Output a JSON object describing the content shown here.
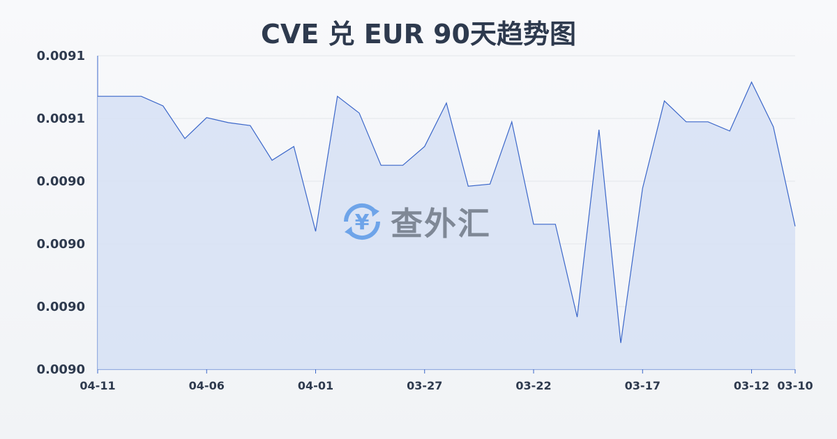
{
  "title": "CVE 兑 EUR 90天趋势图",
  "watermark": {
    "text": "查外汇",
    "icon": "yen-exchange-icon",
    "icon_color": "#4a90e2"
  },
  "chart_data": {
    "type": "area",
    "title": "CVE 兑 EUR 90天趋势图",
    "xlabel": "",
    "ylabel": "",
    "ylim": [
      0.009,
      0.009075
    ],
    "yticks": [
      0.009075,
      0.00906,
      0.009045,
      0.00903,
      0.009015,
      0.009
    ],
    "ytick_labels": [
      "0.0091",
      "0.0091",
      "0.0090",
      "0.0090",
      "0.0090",
      "0.0090"
    ],
    "xtick_labels": [
      "04-11",
      "04-06",
      "04-01",
      "03-27",
      "03-22",
      "03-17",
      "03-12",
      "03-10"
    ],
    "grid": true,
    "line_color": "#3a66c9",
    "fill_color": "#d6e0f5",
    "x": [
      "04-11",
      "04-10",
      "04-09",
      "04-08",
      "04-07",
      "04-06",
      "04-05",
      "04-04",
      "04-03",
      "04-02",
      "04-01",
      "03-31",
      "03-30",
      "03-29",
      "03-28",
      "03-27",
      "03-26",
      "03-25",
      "03-24",
      "03-23",
      "03-22",
      "03-21",
      "03-20",
      "03-19",
      "03-18",
      "03-17",
      "03-16",
      "03-15",
      "03-14",
      "03-13",
      "03-12",
      "03-11",
      "03-10"
    ],
    "values": [
      0.0090653,
      0.0090653,
      0.0090653,
      0.009063,
      0.0090552,
      0.0090602,
      0.009059,
      0.0090583,
      0.00905,
      0.0090533,
      0.009033,
      0.0090653,
      0.0090613,
      0.0090488,
      0.0090488,
      0.0090533,
      0.0090637,
      0.0090438,
      0.0090443,
      0.0090592,
      0.0090347,
      0.0090347,
      0.0090125,
      0.0090573,
      0.0090063,
      0.0090433,
      0.0090642,
      0.0090592,
      0.0090592,
      0.009057,
      0.0090687,
      0.009058,
      0.0090342
    ]
  }
}
